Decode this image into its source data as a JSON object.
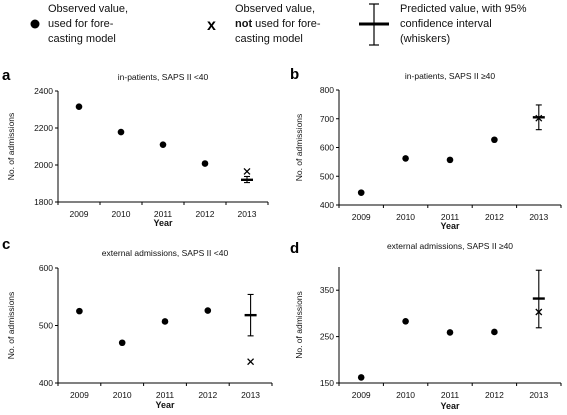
{
  "legend": {
    "observed_used": [
      "Observed value,",
      "used for fore-",
      "casting model"
    ],
    "observed_not_used": [
      "Observed value,",
      "not used for fore-",
      "casting model"
    ],
    "predicted": [
      "Predicted value, with 95%",
      "confidence interval",
      "(whiskers)"
    ]
  },
  "chart_data": [
    {
      "label": "a",
      "type": "scatter",
      "title": "in-patients, SAPS II <40",
      "xlabel": "Year",
      "ylabel": "No. of admissions",
      "categories": [
        "2009",
        "2010",
        "2011",
        "2012",
        "2013"
      ],
      "ylim": [
        1800,
        2400
      ],
      "yticks": [
        1800,
        2000,
        2200,
        2400
      ],
      "observed_used": [
        2315,
        2178,
        2110,
        2008
      ],
      "observed_not_used": {
        "x": "2013",
        "y": 1965
      },
      "predicted": {
        "x": "2013",
        "y": 1920,
        "lower": 1905,
        "upper": 1938
      }
    },
    {
      "label": "b",
      "type": "scatter",
      "title": "in-patients, SAPS II ≥40",
      "xlabel": "Year",
      "ylabel": "No. of admissions",
      "categories": [
        "2009",
        "2010",
        "2011",
        "2012",
        "2013"
      ],
      "ylim": [
        400,
        800
      ],
      "yticks": [
        400,
        500,
        600,
        700,
        800
      ],
      "observed_used": [
        443,
        562,
        557,
        627
      ],
      "observed_not_used": {
        "x": "2013",
        "y": 702
      },
      "predicted": {
        "x": "2013",
        "y": 705,
        "lower": 662,
        "upper": 748
      }
    },
    {
      "label": "c",
      "type": "scatter",
      "title": "external admissions, SAPS II <40",
      "xlabel": "Year",
      "ylabel": "No. of admissions",
      "categories": [
        "2009",
        "2010",
        "2011",
        "2012",
        "2013"
      ],
      "ylim": [
        400,
        600
      ],
      "yticks": [
        400,
        500,
        600
      ],
      "observed_used": [
        525,
        470,
        507,
        526
      ],
      "observed_not_used": {
        "x": "2013",
        "y": 437
      },
      "predicted": {
        "x": "2013",
        "y": 518,
        "lower": 482,
        "upper": 554
      }
    },
    {
      "label": "d",
      "type": "scatter",
      "title": "external admissions, SAPS II ≥40",
      "xlabel": "Year",
      "ylabel": "No. of admissions",
      "categories": [
        "2009",
        "2010",
        "2011",
        "2012",
        "2013"
      ],
      "ylim": [
        150,
        400
      ],
      "yticks": [
        150,
        250,
        350
      ],
      "observed_used": [
        162,
        283,
        259,
        260
      ],
      "observed_not_used": {
        "x": "2013",
        "y": 303
      },
      "predicted": {
        "x": "2013",
        "y": 332,
        "lower": 269,
        "upper": 393
      }
    }
  ]
}
